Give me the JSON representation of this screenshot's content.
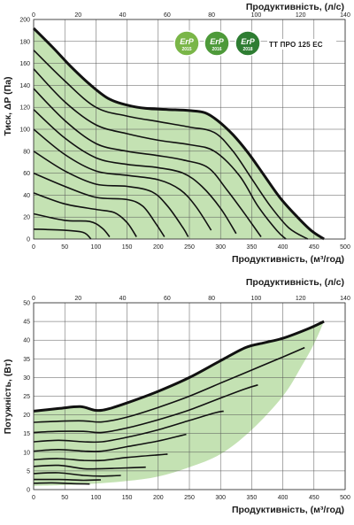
{
  "model_label": "TT ПРО 125 EC",
  "badges": [
    {
      "text": "ErP",
      "year": "2015",
      "color": "#7ab648"
    },
    {
      "text": "ErP",
      "year": "2016",
      "color": "#4e9a3a"
    },
    {
      "text": "ErP",
      "year": "2018",
      "color": "#2e7d32"
    }
  ],
  "colors": {
    "fill": "#c4e2b3",
    "grid": "#555555",
    "curve": "#111111"
  },
  "chart_data": [
    {
      "type": "line",
      "ylabel": "Тиск, ΔP (Па)",
      "xlabel": "Продуктивність, (м³/год)",
      "x2label": "Продуктивність, (л/с)",
      "xlim": [
        0,
        500
      ],
      "ylim": [
        0,
        200
      ],
      "x2lim": [
        0,
        140
      ],
      "xticks": [
        0,
        50,
        100,
        150,
        200,
        250,
        300,
        350,
        400,
        450,
        500
      ],
      "yticks": [
        0,
        20,
        40,
        60,
        80,
        100,
        120,
        140,
        160,
        180,
        200
      ],
      "x2ticks": [
        0,
        20,
        40,
        60,
        80,
        100,
        120,
        140
      ],
      "grid": true,
      "max_curve": [
        [
          0,
          192
        ],
        [
          30,
          175
        ],
        [
          60,
          157
        ],
        [
          90,
          141
        ],
        [
          120,
          128
        ],
        [
          150,
          122
        ],
        [
          180,
          119
        ],
        [
          215,
          118
        ],
        [
          250,
          117
        ],
        [
          275,
          115
        ],
        [
          295,
          108
        ],
        [
          320,
          95
        ],
        [
          345,
          78
        ],
        [
          370,
          58
        ],
        [
          395,
          38
        ],
        [
          420,
          22
        ],
        [
          445,
          8
        ],
        [
          466,
          0
        ]
      ],
      "series": [
        {
          "values": [
            [
              0,
              172
            ],
            [
              50,
              144
            ],
            [
              100,
              120
            ],
            [
              150,
              112
            ],
            [
              200,
              107
            ],
            [
              250,
              102
            ],
            [
              290,
              97
            ],
            [
              320,
              80
            ],
            [
              350,
              55
            ],
            [
              380,
              30
            ],
            [
              410,
              10
            ],
            [
              440,
              -2
            ]
          ]
        },
        {
          "values": [
            [
              0,
              155
            ],
            [
              50,
              125
            ],
            [
              100,
              104
            ],
            [
              150,
              96
            ],
            [
              200,
              90
            ],
            [
              250,
              86
            ],
            [
              290,
              80
            ],
            [
              330,
              58
            ],
            [
              360,
              30
            ],
            [
              390,
              8
            ],
            [
              405,
              -2
            ]
          ]
        },
        {
          "values": [
            [
              0,
              137
            ],
            [
              50,
              108
            ],
            [
              100,
              87
            ],
            [
              150,
              80
            ],
            [
              200,
              76
            ],
            [
              240,
              72
            ],
            [
              280,
              65
            ],
            [
              310,
              45
            ],
            [
              340,
              22
            ],
            [
              365,
              2
            ]
          ]
        },
        {
          "values": [
            [
              0,
              118
            ],
            [
              50,
              92
            ],
            [
              100,
              74
            ],
            [
              150,
              68
            ],
            [
              200,
              65
            ],
            [
              240,
              60
            ],
            [
              270,
              48
            ],
            [
              300,
              28
            ],
            [
              325,
              5
            ]
          ]
        },
        {
          "values": [
            [
              0,
              100
            ],
            [
              50,
              77
            ],
            [
              100,
              62
            ],
            [
              150,
              58
            ],
            [
              200,
              54
            ],
            [
              235,
              45
            ],
            [
              260,
              30
            ],
            [
              285,
              8
            ]
          ]
        },
        {
          "values": [
            [
              0,
              80
            ],
            [
              50,
              62
            ],
            [
              100,
              50
            ],
            [
              150,
              48
            ],
            [
              190,
              43
            ],
            [
              215,
              30
            ],
            [
              240,
              10
            ],
            [
              248,
              2
            ]
          ]
        },
        {
          "values": [
            [
              0,
              60
            ],
            [
              50,
              48
            ],
            [
              100,
              38
            ],
            [
              150,
              36
            ],
            [
              175,
              30
            ],
            [
              195,
              15
            ],
            [
              210,
              2
            ]
          ]
        },
        {
          "values": [
            [
              0,
              42
            ],
            [
              50,
              32
            ],
            [
              100,
              27
            ],
            [
              130,
              24
            ],
            [
              150,
              15
            ],
            [
              165,
              2
            ]
          ]
        },
        {
          "values": [
            [
              0,
              23
            ],
            [
              50,
              17
            ],
            [
              90,
              16
            ],
            [
              110,
              10
            ],
            [
              122,
              2
            ]
          ]
        },
        {
          "values": [
            [
              0,
              9
            ],
            [
              50,
              8
            ],
            [
              80,
              6
            ],
            [
              92,
              0
            ]
          ]
        }
      ]
    },
    {
      "type": "line",
      "ylabel": "Потужність, (Вт)",
      "xlabel": "Продуктивність, (м³/год)",
      "x2label": "Продуктивність, (л/с)",
      "xlim": [
        0,
        500
      ],
      "ylim": [
        0,
        50
      ],
      "x2lim": [
        0,
        140
      ],
      "xticks": [
        0,
        50,
        100,
        150,
        200,
        250,
        300,
        350,
        400,
        450,
        500
      ],
      "yticks": [
        0,
        5,
        10,
        15,
        20,
        25,
        30,
        35,
        40,
        45,
        50
      ],
      "x2ticks": [
        0,
        20,
        40,
        60,
        80,
        100,
        120,
        140
      ],
      "grid": true,
      "max_curve": [
        [
          0,
          21
        ],
        [
          40,
          21.7
        ],
        [
          75,
          22.2
        ],
        [
          100,
          21.2
        ],
        [
          120,
          21.6
        ],
        [
          150,
          23.2
        ],
        [
          200,
          26.3
        ],
        [
          250,
          30
        ],
        [
          300,
          34.5
        ],
        [
          340,
          38
        ],
        [
          370,
          39.3
        ],
        [
          400,
          40.5
        ],
        [
          440,
          43
        ],
        [
          466,
          45
        ]
      ],
      "lower_boundary": [
        [
          0,
          1
        ],
        [
          50,
          1.2
        ],
        [
          100,
          1.6
        ],
        [
          150,
          2.3
        ],
        [
          200,
          3.5
        ],
        [
          250,
          6
        ],
        [
          300,
          9.5
        ],
        [
          350,
          16
        ],
        [
          400,
          25
        ],
        [
          430,
          33
        ],
        [
          450,
          39
        ],
        [
          466,
          45
        ]
      ],
      "series": [
        {
          "values": [
            [
              0,
              18
            ],
            [
              40,
              18.3
            ],
            [
              80,
              18.4
            ],
            [
              110,
              18.1
            ],
            [
              150,
              19.4
            ],
            [
              200,
              22
            ],
            [
              250,
              25
            ],
            [
              300,
              28.5
            ],
            [
              350,
              32
            ],
            [
              400,
              35.5
            ],
            [
              435,
              38
            ]
          ]
        },
        {
          "values": [
            [
              0,
              15.3
            ],
            [
              40,
              15.6
            ],
            [
              80,
              15.6
            ],
            [
              110,
              15.3
            ],
            [
              150,
              16.5
            ],
            [
              200,
              18.7
            ],
            [
              250,
              21.3
            ],
            [
              300,
              24.5
            ],
            [
              340,
              27
            ],
            [
              360,
              28
            ]
          ]
        },
        {
          "values": [
            [
              0,
              12.8
            ],
            [
              40,
              13.2
            ],
            [
              80,
              12.8
            ],
            [
              110,
              12.8
            ],
            [
              150,
              14
            ],
            [
              200,
              16
            ],
            [
              250,
              18.5
            ],
            [
              290,
              20.5
            ],
            [
              305,
              21
            ]
          ]
        },
        {
          "values": [
            [
              0,
              10.3
            ],
            [
              40,
              10.7
            ],
            [
              80,
              10.3
            ],
            [
              110,
              10.3
            ],
            [
              150,
              11.5
            ],
            [
              200,
              13
            ],
            [
              230,
              14.2
            ],
            [
              245,
              14.8
            ]
          ]
        },
        {
          "values": [
            [
              0,
              8
            ],
            [
              40,
              8.3
            ],
            [
              80,
              7.8
            ],
            [
              110,
              7.8
            ],
            [
              150,
              8.6
            ],
            [
              200,
              9.3
            ],
            [
              215,
              9.5
            ]
          ]
        },
        {
          "values": [
            [
              0,
              6.2
            ],
            [
              40,
              6.5
            ],
            [
              80,
              5.6
            ],
            [
              110,
              5.6
            ],
            [
              150,
              5.8
            ],
            [
              180,
              6
            ]
          ]
        },
        {
          "values": [
            [
              0,
              4.3
            ],
            [
              40,
              4.5
            ],
            [
              80,
              3.8
            ],
            [
              110,
              3.6
            ],
            [
              140,
              3.8
            ]
          ]
        },
        {
          "values": [
            [
              0,
              2.7
            ],
            [
              40,
              2.7
            ],
            [
              80,
              2.5
            ],
            [
              108,
              2.6
            ]
          ]
        },
        {
          "values": [
            [
              0,
              1.7
            ],
            [
              30,
              1.8
            ],
            [
              60,
              1.6
            ],
            [
              90,
              1.5
            ]
          ]
        }
      ]
    }
  ]
}
